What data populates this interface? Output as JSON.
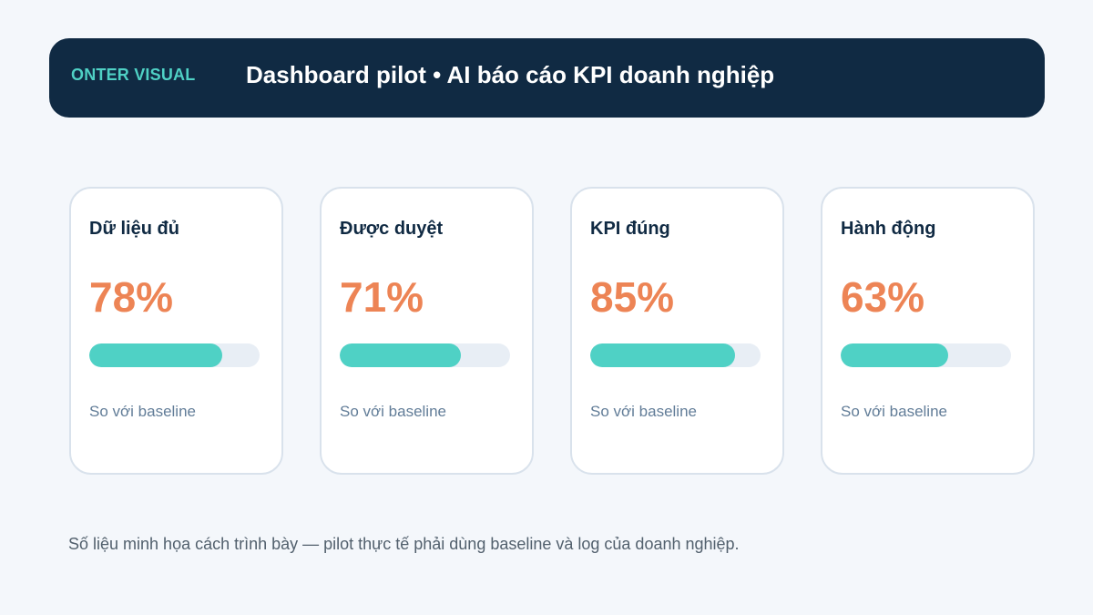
{
  "header": {
    "brand": "ONTER VISUAL",
    "title": "Dashboard pilot • AI báo cáo KPI doanh nghiệp"
  },
  "cards": [
    {
      "title": "Dữ liệu đủ",
      "value": "78%",
      "progress": 0.78,
      "subtitle": "So với baseline"
    },
    {
      "title": "Được duyệt",
      "value": "71%",
      "progress": 0.71,
      "subtitle": "So với baseline"
    },
    {
      "title": "KPI đúng",
      "value": "85%",
      "progress": 0.85,
      "subtitle": "So với baseline"
    },
    {
      "title": "Hành động",
      "value": "63%",
      "progress": 0.63,
      "subtitle": "So với baseline"
    }
  ],
  "footnote": "Số liệu minh họa cách trình bày — pilot thực tế phải dùng baseline và log của doanh nghiệp.",
  "colors": {
    "header_bg": "#102a43",
    "brand": "#4fd1c5",
    "value": "#ed8455",
    "progress_fill": "#4fd1c5",
    "progress_track": "#e8eef5"
  }
}
